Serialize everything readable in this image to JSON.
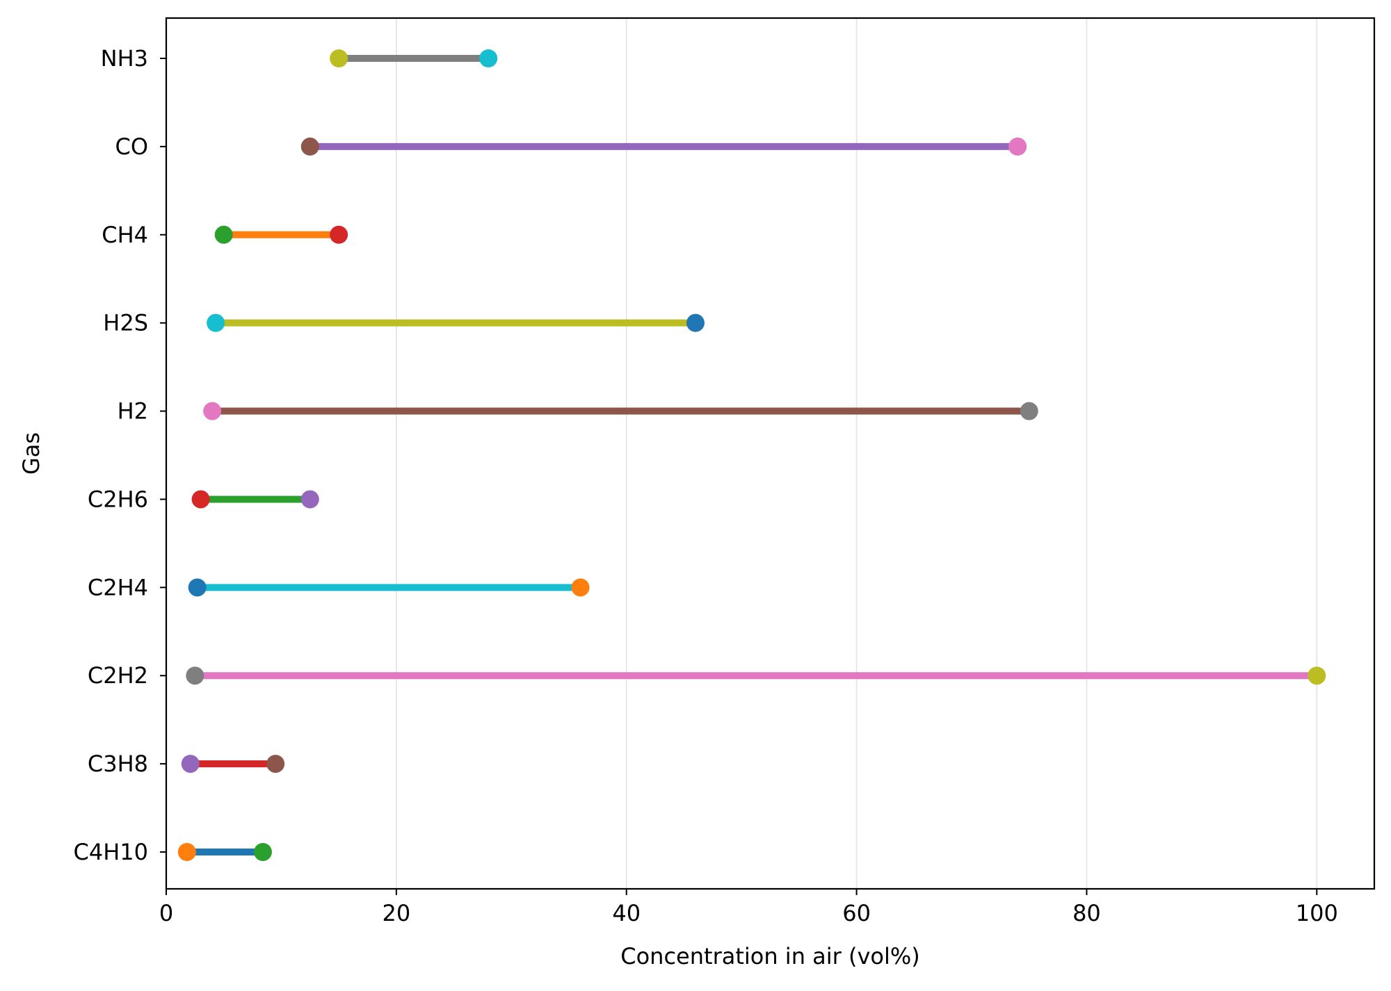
{
  "chart_data": {
    "type": "dumbbell",
    "orientation": "horizontal",
    "title": "",
    "xlabel": "Concentration in air (vol%)",
    "ylabel": "Gas",
    "xlim": [
      0,
      105
    ],
    "xticks": [
      0,
      20,
      40,
      60,
      80,
      100
    ],
    "xtick_labels": [
      "0",
      "20",
      "40",
      "60",
      "80",
      "100"
    ],
    "grid": "x",
    "legend": "none",
    "categories": [
      "C4H10",
      "C3H8",
      "C2H2",
      "C2H4",
      "C2H6",
      "H2",
      "H2S",
      "CH4",
      "CO",
      "NH3"
    ],
    "series": [
      {
        "category": "C4H10",
        "low": 1.8,
        "high": 8.4,
        "line_color": "#1f77b4",
        "low_color": "#ff7f0e",
        "high_color": "#2ca02c"
      },
      {
        "category": "C3H8",
        "low": 2.1,
        "high": 9.5,
        "line_color": "#d62728",
        "low_color": "#9467bd",
        "high_color": "#8c564b"
      },
      {
        "category": "C2H2",
        "low": 2.5,
        "high": 100,
        "line_color": "#e377c2",
        "low_color": "#7f7f7f",
        "high_color": "#bcbd22"
      },
      {
        "category": "C2H4",
        "low": 2.7,
        "high": 36,
        "line_color": "#17becf",
        "low_color": "#1f77b4",
        "high_color": "#ff7f0e"
      },
      {
        "category": "C2H6",
        "low": 3.0,
        "high": 12.5,
        "line_color": "#2ca02c",
        "low_color": "#d62728",
        "high_color": "#9467bd"
      },
      {
        "category": "H2",
        "low": 4.0,
        "high": 75,
        "line_color": "#8c564b",
        "low_color": "#e377c2",
        "high_color": "#7f7f7f"
      },
      {
        "category": "H2S",
        "low": 4.3,
        "high": 46,
        "line_color": "#bcbd22",
        "low_color": "#17becf",
        "high_color": "#1f77b4"
      },
      {
        "category": "CH4",
        "low": 5.0,
        "high": 15,
        "line_color": "#ff7f0e",
        "low_color": "#2ca02c",
        "high_color": "#d62728"
      },
      {
        "category": "CO",
        "low": 12.5,
        "high": 74,
        "line_color": "#9467bd",
        "low_color": "#8c564b",
        "high_color": "#e377c2"
      },
      {
        "category": "NH3",
        "low": 15,
        "high": 28,
        "line_color": "#7f7f7f",
        "low_color": "#bcbd22",
        "high_color": "#17becf"
      }
    ]
  }
}
